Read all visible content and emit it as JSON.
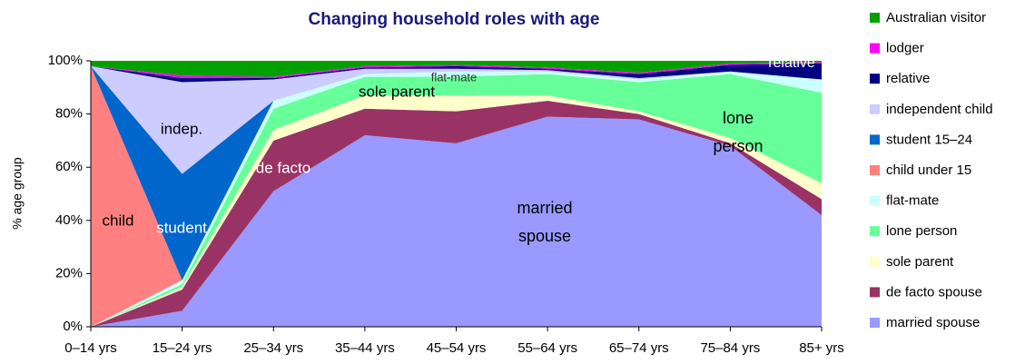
{
  "chart_data": {
    "type": "stacked_area",
    "title": "Changing household roles with age",
    "y_label": "% age group",
    "categories": [
      "0–14 yrs",
      "15–24 yrs",
      "25–34 yrs",
      "35–44 yrs",
      "45–54 yrs",
      "55–64 yrs",
      "65–74 yrs",
      "75–84 yrs",
      "85+ yrs"
    ],
    "ylim": [
      0,
      100
    ],
    "yticks": [
      {
        "value": 0,
        "label": "0%"
      },
      {
        "value": 20,
        "label": "20%"
      },
      {
        "value": 40,
        "label": "40%"
      },
      {
        "value": 60,
        "label": "60%"
      },
      {
        "value": 80,
        "label": "80%"
      },
      {
        "value": 100,
        "label": "100%"
      }
    ],
    "series": [
      {
        "name": "married spouse",
        "color": "#9999ff",
        "values": [
          0,
          6,
          51,
          72,
          69,
          79,
          78,
          68,
          42
        ]
      },
      {
        "name": "de facto spouse",
        "color": "#993366",
        "values": [
          0,
          8,
          19,
          10,
          12,
          6,
          2,
          1,
          6
        ]
      },
      {
        "name": "sole parent",
        "color": "#ffffcc",
        "values": [
          0,
          1,
          4,
          5,
          6,
          2,
          1,
          2,
          6
        ]
      },
      {
        "name": "lone person",
        "color": "#66ff99",
        "values": [
          0,
          1,
          8,
          7,
          7,
          8,
          11,
          24,
          34
        ]
      },
      {
        "name": "flat-mate",
        "color": "#ccffff",
        "values": [
          0,
          1.5,
          3,
          1,
          2,
          1,
          1,
          1,
          5
        ]
      },
      {
        "name": "child under 15",
        "color": "#ff8080",
        "values": [
          98,
          0,
          0,
          0,
          0,
          0,
          0,
          0,
          0
        ]
      },
      {
        "name": "student 15–24",
        "color": "#0066cc",
        "values": [
          0,
          40,
          0,
          0,
          0,
          0,
          0,
          0,
          0
        ]
      },
      {
        "name": "independent child",
        "color": "#ccccff",
        "values": [
          0,
          34.5,
          8,
          2,
          1,
          0.5,
          0.5,
          0,
          0
        ]
      },
      {
        "name": "relative",
        "color": "#000080",
        "values": [
          0,
          1.5,
          0.5,
          0.5,
          1,
          0.5,
          1.5,
          2.5,
          6
        ]
      },
      {
        "name": "lodger",
        "color": "#ff00ff",
        "values": [
          0,
          1,
          0.5,
          0.5,
          0.5,
          0.5,
          0.5,
          0.5,
          0.5
        ]
      },
      {
        "name": "Australian visitor",
        "color": "#00a000",
        "values": [
          2,
          5.5,
          6,
          2,
          1.5,
          2.5,
          4.5,
          1,
          0.5
        ]
      }
    ],
    "annotations": [
      [
        "child"
      ],
      [
        "indep."
      ],
      [
        "student"
      ],
      [
        "de facto"
      ],
      [
        "sole parent"
      ],
      [
        "flat-mate"
      ],
      [
        "married",
        "spouse"
      ],
      [
        "lone",
        "person"
      ],
      [
        "relative"
      ]
    ]
  }
}
